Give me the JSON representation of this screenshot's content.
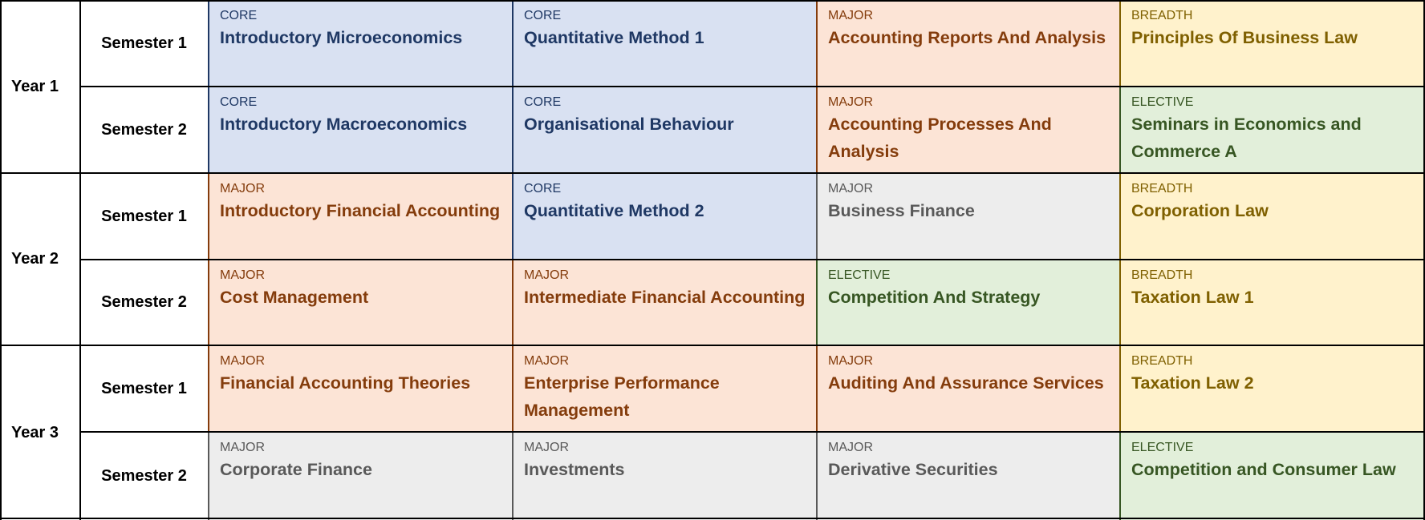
{
  "rows": [
    {
      "year": "Year 1",
      "semesters": [
        {
          "label": "Semester 1",
          "units": [
            {
              "category": "CORE",
              "name": "Introductory Microeconomics",
              "type": "core"
            },
            {
              "category": "CORE",
              "name": "Quantitative Method 1",
              "type": "core"
            },
            {
              "category": "MAJOR",
              "name": "Accounting Reports And Analysis",
              "type": "major"
            },
            {
              "category": "BREADTH",
              "name": "Principles Of Business Law",
              "type": "breadth"
            }
          ]
        },
        {
          "label": "Semester 2",
          "units": [
            {
              "category": "CORE",
              "name": "Introductory Macroeconomics",
              "type": "core"
            },
            {
              "category": "CORE",
              "name": "Organisational Behaviour",
              "type": "core"
            },
            {
              "category": "MAJOR",
              "name": "Accounting Processes And Analysis",
              "type": "major"
            },
            {
              "category": "ELECTIVE",
              "name": "Seminars in Economics and Commerce A",
              "type": "elective"
            }
          ]
        }
      ]
    },
    {
      "year": "Year 2",
      "semesters": [
        {
          "label": "Semester 1",
          "units": [
            {
              "category": "MAJOR",
              "name": "Introductory Financial Accounting",
              "type": "major"
            },
            {
              "category": "CORE",
              "name": "Quantitative Method 2",
              "type": "core"
            },
            {
              "category": "MAJOR",
              "name": "Business Finance",
              "type": "majorg"
            },
            {
              "category": "BREADTH",
              "name": "Corporation Law",
              "type": "breadth"
            }
          ]
        },
        {
          "label": "Semester 2",
          "units": [
            {
              "category": "MAJOR",
              "name": "Cost Management",
              "type": "major"
            },
            {
              "category": "MAJOR",
              "name": "Intermediate Financial Accounting",
              "type": "major"
            },
            {
              "category": "ELECTIVE",
              "name": "Competition And Strategy",
              "type": "elective"
            },
            {
              "category": "BREADTH",
              "name": "Taxation Law 1",
              "type": "breadth"
            }
          ]
        }
      ]
    },
    {
      "year": "Year 3",
      "semesters": [
        {
          "label": "Semester 1",
          "units": [
            {
              "category": "MAJOR",
              "name": "Financial Accounting Theories",
              "type": "major"
            },
            {
              "category": "MAJOR",
              "name": "Enterprise Performance Management",
              "type": "major"
            },
            {
              "category": "MAJOR",
              "name": "Auditing And Assurance Services",
              "type": "major"
            },
            {
              "category": "BREADTH",
              "name": "Taxation Law 2",
              "type": "breadth"
            }
          ]
        },
        {
          "label": "Semester 2",
          "units": [
            {
              "category": "MAJOR",
              "name": "Corporate Finance",
              "type": "majorg"
            },
            {
              "category": "MAJOR",
              "name": "Investments",
              "type": "majorg"
            },
            {
              "category": "MAJOR",
              "name": "Derivative Securities",
              "type": "majorg"
            },
            {
              "category": "ELECTIVE",
              "name": "Competition and Consumer Law",
              "type": "elective"
            }
          ]
        }
      ]
    }
  ],
  "colors": {
    "core": "#d9e1f2",
    "major": "#fce4d6",
    "major_grey": "#ededed",
    "breadth": "#fff2cc",
    "elective": "#e2efda"
  }
}
